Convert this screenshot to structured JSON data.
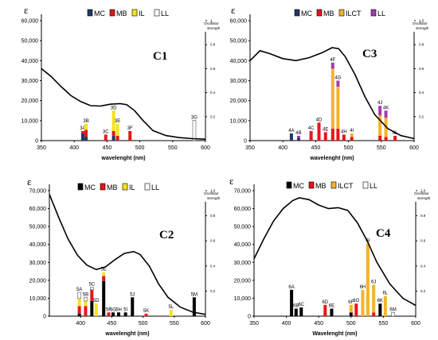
{
  "chart_data": [
    {
      "type": "bar",
      "title": "C1",
      "ylabel": "ε",
      "xlabel": "wavelenght (nm)",
      "oscillator_label": [
        "Oscillator",
        "strength"
      ],
      "xlim": [
        350,
        600
      ],
      "ylim": [
        0,
        60000
      ],
      "olim": [
        0,
        1.0
      ],
      "xticks": [
        "350",
        "400",
        "450",
        "500",
        "550",
        "600"
      ],
      "yticks": [
        "0",
        "10,000",
        "20,000",
        "30,000",
        "40,000",
        "50,000",
        "60,000"
      ],
      "oticks": [
        "0.2",
        "0.4",
        "0.6",
        "0.8",
        "1"
      ],
      "legend": [
        {
          "label": "MC",
          "color": "#1f3864"
        },
        {
          "label": "MB",
          "color": "#e8141b"
        },
        {
          "label": "IL",
          "color": "#f5e31a"
        },
        {
          "label": "LL",
          "color": "#ffffff"
        }
      ],
      "spectrum": [
        [
          350,
          36000
        ],
        [
          365,
          32000
        ],
        [
          380,
          27000
        ],
        [
          395,
          22500
        ],
        [
          410,
          19500
        ],
        [
          425,
          17500
        ],
        [
          440,
          17300
        ],
        [
          455,
          18200
        ],
        [
          470,
          18500
        ],
        [
          480,
          18000
        ],
        [
          492,
          15000
        ],
        [
          505,
          10000
        ],
        [
          520,
          5000
        ],
        [
          540,
          2500
        ],
        [
          560,
          1500
        ],
        [
          580,
          1000
        ],
        [
          600,
          700
        ]
      ],
      "bars": [
        {
          "label": "3A",
          "x": 413,
          "stack": [
            0.06,
            0.02,
            0.0,
            0.0
          ]
        },
        {
          "label": "3B",
          "x": 418,
          "stack": [
            0.03,
            0.06,
            0.05,
            0.0
          ]
        },
        {
          "label": "3C",
          "x": 448,
          "stack": [
            0.0,
            0.05,
            0.0,
            0.0
          ]
        },
        {
          "label": "3D",
          "x": 460,
          "stack": [
            0.04,
            0.04,
            0.17,
            0.0
          ]
        },
        {
          "label": "3E",
          "x": 466,
          "stack": [
            0.0,
            0.04,
            0.1,
            0.0
          ]
        },
        {
          "label": "3F",
          "x": 485,
          "stack": [
            0.0,
            0.08,
            0.0,
            0.0
          ]
        },
        {
          "label": "3G",
          "x": 583,
          "stack": [
            0.0,
            0.0,
            0.0,
            0.17
          ]
        }
      ]
    },
    {
      "type": "bar",
      "title": "C3",
      "ylabel": "ε",
      "xlabel": "wavelenght (nm)",
      "oscillator_label": [
        "Oscillator",
        "strength"
      ],
      "xlim": [
        350,
        600
      ],
      "ylim": [
        0,
        60000
      ],
      "olim": [
        0,
        1.0
      ],
      "xticks": [
        "350",
        "400",
        "450",
        "500",
        "550",
        "600"
      ],
      "yticks": [
        "0",
        "10,000",
        "20,000",
        "30,000",
        "40,000",
        "50,000",
        "60,000"
      ],
      "oticks": [
        "0.2",
        "0.4",
        "0.6",
        "0.8",
        "1.0"
      ],
      "legend": [
        {
          "label": "MC",
          "color": "#1f3864"
        },
        {
          "label": "MB",
          "color": "#e8141b"
        },
        {
          "label": "ILCT",
          "color": "#f6b22a"
        },
        {
          "label": "LL",
          "color": "#a23bb0"
        }
      ],
      "spectrum": [
        [
          350,
          40000
        ],
        [
          365,
          45000
        ],
        [
          380,
          43500
        ],
        [
          400,
          41000
        ],
        [
          420,
          40000
        ],
        [
          440,
          41500
        ],
        [
          460,
          44000
        ],
        [
          475,
          46500
        ],
        [
          485,
          46000
        ],
        [
          495,
          42000
        ],
        [
          510,
          33000
        ],
        [
          525,
          22000
        ],
        [
          540,
          13000
        ],
        [
          560,
          6000
        ],
        [
          580,
          2500
        ],
        [
          600,
          1000
        ]
      ],
      "bars": [
        {
          "label": "4A",
          "x": 413,
          "stack": [
            0.06,
            0.0,
            0.0,
            0.0
          ]
        },
        {
          "label": "4B",
          "x": 424,
          "stack": [
            0.02,
            0.0,
            0.0,
            0.02
          ]
        },
        {
          "label": "4C",
          "x": 443,
          "stack": [
            0.0,
            0.08,
            0.0,
            0.0
          ]
        },
        {
          "label": "4D",
          "x": 455,
          "stack": [
            0.0,
            0.15,
            0.0,
            0.0
          ]
        },
        {
          "label": "4E",
          "x": 465,
          "stack": [
            0.0,
            0.07,
            0.0,
            0.0
          ]
        },
        {
          "label": "4F",
          "x": 476,
          "stack": [
            0.0,
            0.1,
            0.5,
            0.05
          ]
        },
        {
          "label": "4G",
          "x": 484,
          "stack": [
            0.0,
            0.1,
            0.35,
            0.05
          ]
        },
        {
          "label": "4H",
          "x": 493,
          "stack": [
            0.0,
            0.05,
            0.0,
            0.0
          ]
        },
        {
          "label": "4I",
          "x": 505,
          "stack": [
            0.0,
            0.03,
            0.03,
            0.0
          ]
        },
        {
          "label": "4J",
          "x": 548,
          "stack": [
            0.0,
            0.04,
            0.17,
            0.08
          ]
        },
        {
          "label": "4K",
          "x": 557,
          "stack": [
            0.0,
            0.03,
            0.16,
            0.06
          ]
        },
        {
          "label": "4L",
          "x": 571,
          "stack": [
            0.0,
            0.04,
            0.0,
            0.0
          ]
        }
      ]
    },
    {
      "type": "bar",
      "title": "C2",
      "ylabel": "ε",
      "xlabel": "wavelenght (nm)",
      "oscillator_label": [
        "Oscillator",
        "strength"
      ],
      "xlim": [
        350,
        600
      ],
      "ylim": [
        0,
        70000
      ],
      "olim": [
        0,
        1.0
      ],
      "xticks": [
        "400",
        "450",
        "500",
        "550",
        "600"
      ],
      "yticks": [
        "0",
        "10,000",
        "20,000",
        "30,000",
        "40,000",
        "50,000",
        "60,000",
        "70,000"
      ],
      "oticks": [
        "0.2",
        "0.4",
        "0.6",
        "0.8",
        "1.0"
      ],
      "legend": [
        {
          "label": "MC",
          "color": "#000000"
        },
        {
          "label": "MB",
          "color": "#e8141b"
        },
        {
          "label": "IL",
          "color": "#f5e31a"
        },
        {
          "label": "LL",
          "color": "#ffffff"
        }
      ],
      "spectrum": [
        [
          350,
          68000
        ],
        [
          365,
          55000
        ],
        [
          380,
          43000
        ],
        [
          395,
          34000
        ],
        [
          410,
          28500
        ],
        [
          425,
          26000
        ],
        [
          440,
          27500
        ],
        [
          455,
          31500
        ],
        [
          470,
          35000
        ],
        [
          485,
          36000
        ],
        [
          495,
          34500
        ],
        [
          510,
          28000
        ],
        [
          525,
          18000
        ],
        [
          540,
          10500
        ],
        [
          560,
          5000
        ],
        [
          580,
          2200
        ],
        [
          600,
          1000
        ]
      ],
      "bars": [
        {
          "label": "5A",
          "x": 398,
          "stack": [
            0.02,
            0.06,
            0.06,
            0.05
          ]
        },
        {
          "label": "5B",
          "x": 408,
          "stack": [
            0.0,
            0.08,
            0.04,
            0.03
          ]
        },
        {
          "label": "5C",
          "x": 418,
          "stack": [
            0.12,
            0.09,
            0.0,
            0.02
          ]
        },
        {
          "label": "5D",
          "x": 425,
          "stack": [
            0.0,
            0.0,
            0.1,
            0.0
          ]
        },
        {
          "label": "5E",
          "x": 437,
          "stack": [
            0.28,
            0.04,
            0.03,
            0.0
          ]
        },
        {
          "label": "5F",
          "x": 445,
          "stack": [
            0.0,
            0.03,
            0.0,
            0.0
          ]
        },
        {
          "label": "5G",
          "x": 452,
          "stack": [
            0.03,
            0.0,
            0.0,
            0.0
          ]
        },
        {
          "label": "5H",
          "x": 461,
          "stack": [
            0.03,
            0.0,
            0.0,
            0.0
          ]
        },
        {
          "label": "5I",
          "x": 472,
          "stack": [
            0.03,
            0.0,
            0.0,
            0.0
          ]
        },
        {
          "label": "5J",
          "x": 483,
          "stack": [
            0.15,
            0.0,
            0.0,
            0.0
          ]
        },
        {
          "label": "5K",
          "x": 505,
          "stack": [
            0.0,
            0.02,
            0.0,
            0.0
          ]
        },
        {
          "label": "5L",
          "x": 545,
          "stack": [
            0.0,
            0.0,
            0.05,
            0.0
          ]
        },
        {
          "label": "5M",
          "x": 582,
          "stack": [
            0.15,
            0.0,
            0.0,
            0.0
          ]
        }
      ]
    },
    {
      "type": "bar",
      "title": "C4",
      "ylabel": "ε",
      "xlabel": "Wavelenght (nm)",
      "oscillator_label": [
        "Oscillator",
        "strength"
      ],
      "xlim": [
        350,
        600
      ],
      "ylim": [
        0,
        70000
      ],
      "olim": [
        0,
        1.0
      ],
      "xticks": [
        "350",
        "400",
        "450",
        "500",
        "550",
        "600"
      ],
      "yticks": [
        "0",
        "10,000",
        "20,000",
        "30,000",
        "40,000",
        "50,000",
        "60,000",
        "70,000"
      ],
      "oticks": [
        "0.2",
        "0.4",
        "0.6",
        "0.8",
        "1.0"
      ],
      "legend": [
        {
          "label": "MC",
          "color": "#000000"
        },
        {
          "label": "MB",
          "color": "#e8141b"
        },
        {
          "label": "ILCT",
          "color": "#f6b22a"
        },
        {
          "label": "LL",
          "color": "#ffffff"
        }
      ],
      "spectrum": [
        [
          350,
          32000
        ],
        [
          365,
          43000
        ],
        [
          380,
          53000
        ],
        [
          395,
          60000
        ],
        [
          410,
          64500
        ],
        [
          420,
          66000
        ],
        [
          435,
          65000
        ],
        [
          450,
          62000
        ],
        [
          465,
          60000
        ],
        [
          480,
          60500
        ],
        [
          495,
          59000
        ],
        [
          510,
          52000
        ],
        [
          525,
          42000
        ],
        [
          540,
          30000
        ],
        [
          560,
          18000
        ],
        [
          580,
          10000
        ],
        [
          600,
          6000
        ]
      ],
      "bars": [
        {
          "label": "6A",
          "x": 408,
          "stack": [
            0.21,
            0.0,
            0.0,
            0.0
          ]
        },
        {
          "label": "6B",
          "x": 415,
          "stack": [
            0.06,
            0.0,
            0.0,
            0.0
          ]
        },
        {
          "label": "6C",
          "x": 423,
          "stack": [
            0.07,
            0.0,
            0.0,
            0.0
          ]
        },
        {
          "label": "6D",
          "x": 460,
          "stack": [
            0.0,
            0.09,
            0.0,
            0.0
          ]
        },
        {
          "label": "6E",
          "x": 470,
          "stack": [
            0.06,
            0.0,
            0.0,
            0.0
          ]
        },
        {
          "label": "6F",
          "x": 500,
          "stack": [
            0.03,
            0.0,
            0.06,
            0.0
          ]
        },
        {
          "label": "6G",
          "x": 508,
          "stack": [
            0.0,
            0.1,
            0.0,
            0.0
          ]
        },
        {
          "label": "6H",
          "x": 518,
          "stack": [
            0.0,
            0.0,
            0.21,
            0.0
          ]
        },
        {
          "label": "6I",
          "x": 526,
          "stack": [
            0.0,
            0.0,
            0.58,
            0.0
          ]
        },
        {
          "label": "6J",
          "x": 535,
          "stack": [
            0.0,
            0.03,
            0.22,
            0.0
          ]
        },
        {
          "label": "6K",
          "x": 545,
          "stack": [
            0.1,
            0.0,
            0.0,
            0.0
          ]
        },
        {
          "label": "6L",
          "x": 553,
          "stack": [
            0.0,
            0.0,
            0.16,
            0.0
          ]
        },
        {
          "label": "6M",
          "x": 565,
          "stack": [
            0.0,
            0.0,
            0.0,
            0.03
          ]
        }
      ]
    }
  ]
}
